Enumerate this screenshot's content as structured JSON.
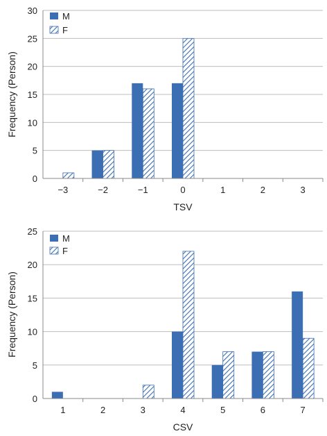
{
  "colors": {
    "male": "#3b6eb3",
    "female_stripe": "#3b6eb3",
    "grid": "#bdbdbd",
    "axis": "#888888"
  },
  "chart_data": [
    {
      "type": "bar",
      "xlabel": "TSV",
      "ylabel": "Frequency (Person)",
      "ylim": [
        0,
        30
      ],
      "yticks": [
        "0",
        "5",
        "10",
        "15",
        "20",
        "25",
        "30"
      ],
      "categories": [
        "−3",
        "−2",
        "−1",
        "0",
        "1",
        "2",
        "3"
      ],
      "grid": true,
      "legend_position": "top-left",
      "series": [
        {
          "name": "M",
          "pattern": "solid",
          "values": [
            0,
            5,
            17,
            17,
            0,
            0,
            0
          ]
        },
        {
          "name": "F",
          "pattern": "hatched",
          "values": [
            1,
            5,
            16,
            25,
            0,
            0,
            0
          ]
        }
      ]
    },
    {
      "type": "bar",
      "xlabel": "CSV",
      "ylabel": "Frequency (Person)",
      "ylim": [
        0,
        25
      ],
      "yticks": [
        "0",
        "5",
        "10",
        "15",
        "20",
        "25"
      ],
      "categories": [
        "1",
        "2",
        "3",
        "4",
        "5",
        "6",
        "7"
      ],
      "grid": true,
      "legend_position": "top-left",
      "series": [
        {
          "name": "M",
          "pattern": "solid",
          "values": [
            1,
            0,
            0,
            10,
            5,
            7,
            16
          ]
        },
        {
          "name": "F",
          "pattern": "hatched",
          "values": [
            0,
            0,
            2,
            22,
            7,
            7,
            9
          ]
        }
      ]
    }
  ]
}
